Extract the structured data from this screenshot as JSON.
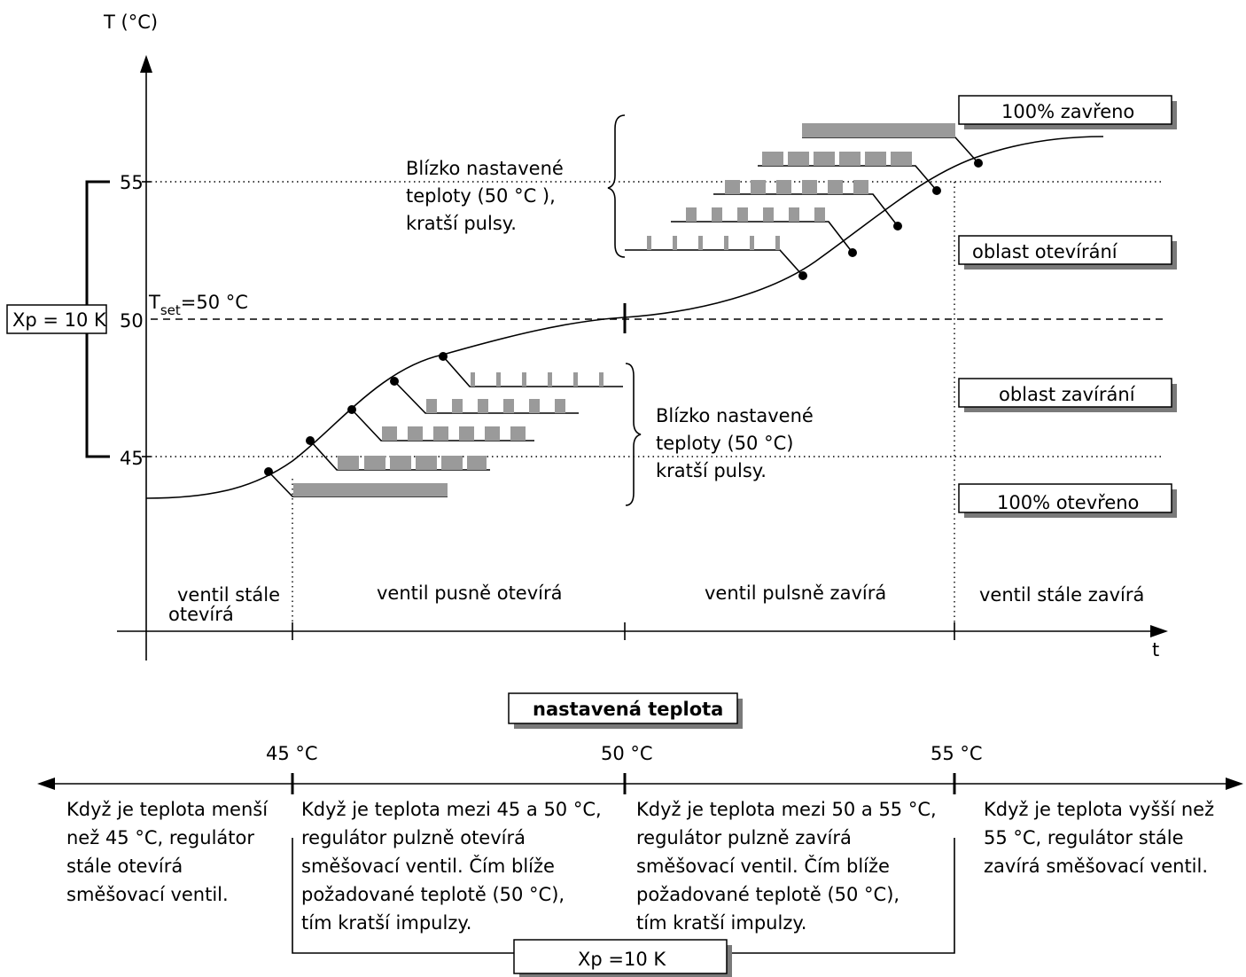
{
  "axis": {
    "y_label": "T (°C)",
    "x_label": "t",
    "ticks": [
      "55",
      "50",
      "45"
    ],
    "tset_T": "T",
    "tset_sub": "set",
    "tset_value": "=50 °C",
    "xp_label": "Xp = 10 K"
  },
  "regions": {
    "r1_line1": "ventil stále",
    "r1_line2": "otevírá",
    "r2": "ventil pusně otevírá",
    "r3": "ventil pulsně zavírá",
    "r4": "ventil stále zavírá"
  },
  "notes": {
    "upper": [
      "Blízko nastavené",
      "teploty (50 °C ),",
      "kratší pulsy."
    ],
    "lower": [
      "Blízko nastavené",
      "teploty (50 °C)",
      "kratší pulsy."
    ]
  },
  "legend": {
    "closed": "100% zavřeno",
    "opening_zone": "oblast otevírání",
    "closing_zone": "oblast zavírání",
    "opened": "100% otevřeno"
  },
  "scale": {
    "title": "nastavená teplota",
    "t45": "45 °C",
    "t50": "50 °C",
    "t55": "55 °C",
    "xp": "Xp =10 K",
    "col1": [
      "Když je teplota menší",
      "než 45 °C, regulátor",
      "stále otevírá",
      "směšovací ventil."
    ],
    "col2": [
      "Když je teplota mezi 45 a 50 °C,",
      "regulátor pulzně otevírá",
      "směšovací ventil. Čím blíže",
      "požadované teplotě (50 °C),",
      "tím kratší impulzy."
    ],
    "col3": [
      "Když je teplota mezi  50 a 55 °C,",
      "regulátor pulzně zavírá",
      "směšovací ventil. Čím blíže",
      "požadované teplotě  (50 °C),",
      "tím kratší impulzy."
    ],
    "col4": [
      "Když je teplota vyšší než",
      "55 °C, regulátor stále",
      "zavírá směšovací ventil."
    ]
  }
}
